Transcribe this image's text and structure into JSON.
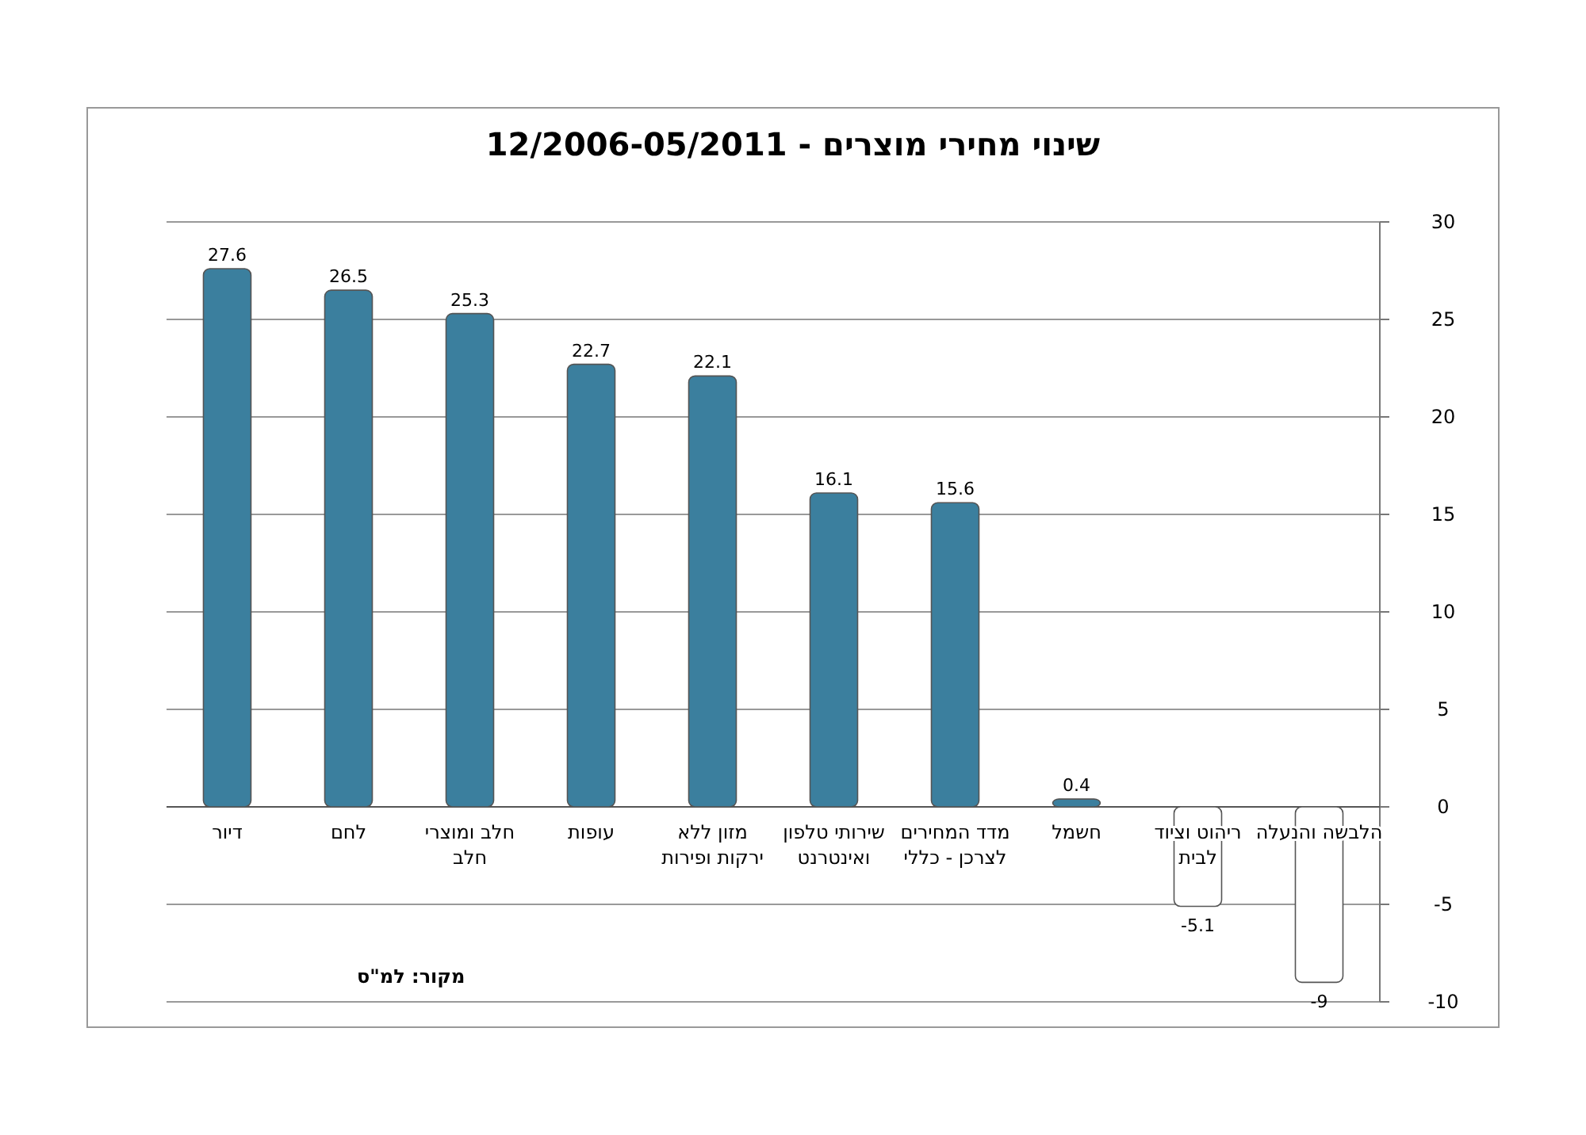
{
  "chart_data": {
    "type": "bar",
    "title": "שינוי מחירי מוצרים - 12/2006-05/2011",
    "categories": [
      "דיור",
      "לחם",
      "חלב ומוצרי חלב",
      "עופות",
      "מזון ללא ירקות ופירות",
      "שירותי טלפון ואינטרנט",
      "מדד המחירים לצרכן - כללי",
      "חשמל",
      "ריהוט וציוד לבית",
      "הלבשה והנעלה"
    ],
    "values": [
      27.6,
      26.5,
      25.3,
      22.7,
      22.1,
      16.1,
      15.6,
      0.4,
      -5.1,
      -9
    ],
    "colors": [
      "#3b7f9e",
      "#3b7f9e",
      "#3b7f9e",
      "#3b7f9e",
      "#3b7f9e",
      "#3b7f9e",
      "#3b7f9e",
      "#3b7f9e",
      "#ffffff",
      "#ffffff"
    ],
    "ylim": [
      -10,
      30
    ],
    "yticks": [
      -10,
      -5,
      0,
      5,
      10,
      15,
      20,
      25,
      30
    ],
    "grid": "y",
    "data_labels": true,
    "annotations": [
      "מקור: למ\"ס"
    ]
  }
}
